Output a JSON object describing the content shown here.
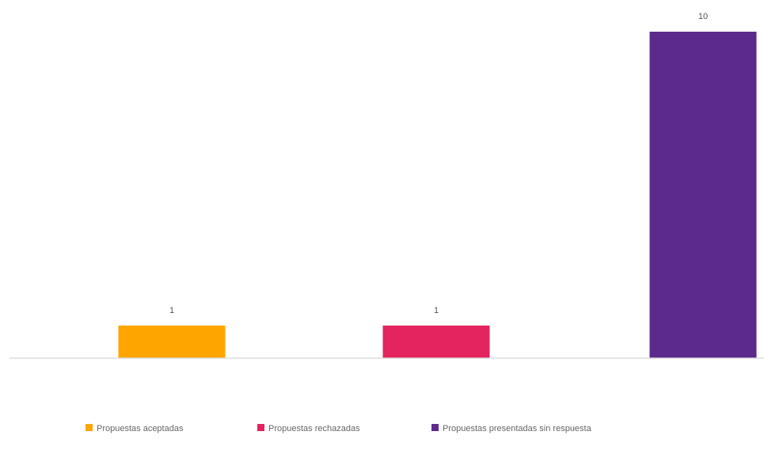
{
  "chart_data": {
    "type": "bar",
    "categories": [
      "Propuestas aceptadas",
      "Propuestas rechazadas",
      "Propuestas presentadas sin respuesta"
    ],
    "values": [
      1,
      1,
      10
    ],
    "ylim": [
      0,
      10
    ],
    "grid": false,
    "legend_position": "bottom",
    "colors": [
      "#FFA500",
      "#E3245E",
      "#5B2A8C"
    ],
    "data_labels": [
      "1",
      "1",
      "10"
    ]
  }
}
